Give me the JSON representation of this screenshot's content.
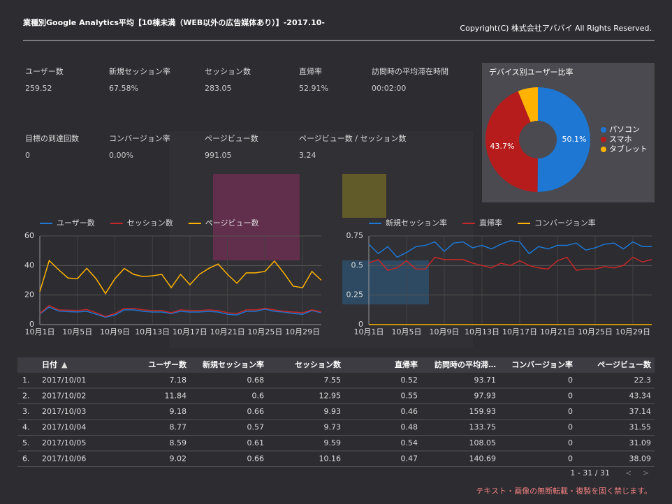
{
  "header": {
    "title": "業種別Google Analytics平均【10棟未満（WEB以外の広告媒体あり）】-2017.10-",
    "copyright": "Copyright(C) 株式会社アババイ All Rights Reserved."
  },
  "scorecards": [
    {
      "label": "ユーザー数",
      "value": "259.52"
    },
    {
      "label": "新規セッション率",
      "value": "67.58%"
    },
    {
      "label": "セッション数",
      "value": "283.05"
    },
    {
      "label": "直帰率",
      "value": "52.91%"
    },
    {
      "label": "訪問時の平均滞在時間",
      "value": "00:02:00"
    },
    {
      "label": "目標の到達回数",
      "value": "0"
    },
    {
      "label": "コンバージョン率",
      "value": "0.00%"
    },
    {
      "label": "ページビュー数",
      "value": "991.05"
    },
    {
      "label": "ページビュー数 / セッション数",
      "value": "3.24"
    }
  ],
  "chart_data": [
    {
      "type": "line",
      "categories": [
        "10月1日",
        null,
        null,
        null,
        "10月5日",
        null,
        null,
        null,
        "10月9日",
        null,
        null,
        null,
        "10月13日",
        null,
        null,
        null,
        "10月17日",
        null,
        null,
        null,
        "10月21日",
        null,
        null,
        null,
        "10月25日",
        null,
        null,
        null,
        "10月29日",
        null,
        null
      ],
      "series": [
        {
          "name": "ユーザー数",
          "color": "#1e77d3",
          "values": [
            7.18,
            11.84,
            9.18,
            8.77,
            8.59,
            9.02,
            7,
            5,
            6.5,
            10,
            10,
            9,
            8.5,
            8.5,
            7.5,
            9,
            8.5,
            8.5,
            9,
            8.5,
            7,
            6.5,
            9,
            9,
            10.5,
            9,
            8.5,
            7.5,
            7,
            9.5,
            8
          ]
        },
        {
          "name": "セッション数",
          "color": "#c62828",
          "values": [
            7.55,
            12.95,
            9.93,
            9.73,
            9.59,
            10.16,
            8,
            5.5,
            7.5,
            11,
            11,
            10,
            9.5,
            9.5,
            8,
            10,
            9.5,
            9.5,
            10,
            9.5,
            8,
            7.5,
            10,
            10,
            11,
            10,
            9,
            8.5,
            8,
            10,
            8.5
          ]
        },
        {
          "name": "ページビュー数",
          "color": "#ffb300",
          "values": [
            22.3,
            43.34,
            37.14,
            31.55,
            31.09,
            38.09,
            31,
            21,
            31,
            38,
            34,
            32.5,
            33,
            34,
            25,
            34,
            27,
            34,
            38,
            41,
            34,
            28,
            35,
            35,
            36,
            43,
            35,
            26,
            25,
            36,
            30
          ]
        }
      ],
      "ylim": [
        0,
        60
      ],
      "yticks": [
        0,
        20,
        40,
        60
      ],
      "grid": true
    },
    {
      "type": "line",
      "categories": [
        "10月1日",
        null,
        null,
        null,
        "10月5日",
        null,
        null,
        null,
        "10月9日",
        null,
        null,
        null,
        "10月13日",
        null,
        null,
        null,
        "10月17日",
        null,
        null,
        null,
        "10月21日",
        null,
        null,
        null,
        "10月25日",
        null,
        null,
        null,
        "10月29日",
        null,
        null
      ],
      "series": [
        {
          "name": "新規セッション率",
          "color": "#1e77d3",
          "values": [
            0.68,
            0.6,
            0.66,
            0.57,
            0.61,
            0.66,
            0.67,
            0.7,
            0.62,
            0.69,
            0.7,
            0.65,
            0.67,
            0.64,
            0.68,
            0.71,
            0.7,
            0.6,
            0.66,
            0.64,
            0.67,
            0.67,
            0.69,
            0.63,
            0.65,
            0.68,
            0.69,
            0.64,
            0.7,
            0.66,
            0.66
          ]
        },
        {
          "name": "直帰率",
          "color": "#c62828",
          "values": [
            0.52,
            0.55,
            0.46,
            0.48,
            0.54,
            0.47,
            0.47,
            0.57,
            0.55,
            0.55,
            0.55,
            0.52,
            0.5,
            0.48,
            0.52,
            0.5,
            0.54,
            0.5,
            0.48,
            0.47,
            0.54,
            0.57,
            0.46,
            0.47,
            0.47,
            0.49,
            0.48,
            0.5,
            0.57,
            0.53,
            0.55
          ]
        },
        {
          "name": "コンバージョン率",
          "color": "#ffb300",
          "values": [
            0,
            0,
            0,
            0,
            0,
            0,
            0,
            0,
            0,
            0,
            0,
            0,
            0,
            0,
            0,
            0,
            0,
            0,
            0,
            0,
            0,
            0,
            0,
            0,
            0,
            0,
            0,
            0,
            0,
            0,
            0
          ]
        }
      ],
      "ylim": [
        0,
        0.75
      ],
      "yticks": [
        0,
        0.25,
        0.5,
        0.75
      ],
      "grid": true
    },
    {
      "type": "pie",
      "title": "デバイス別ユーザー比率",
      "categories": [
        "パソコン",
        "スマホ",
        "タブレット"
      ],
      "values": [
        50.1,
        43.7,
        6.2
      ],
      "value_labels": [
        "50.1%",
        "43.7%",
        null
      ],
      "colors": [
        "#1e77d3",
        "#b71c1c",
        "#ffb300"
      ]
    }
  ],
  "table": {
    "columns": [
      "日付",
      "ユーザー数",
      "新規セッション率",
      "セッション数",
      "直帰率",
      "訪問時の平均滞…",
      "コンバージョン率",
      "ページビュー数"
    ],
    "rows": [
      [
        "1.",
        "2017/10/01",
        7.18,
        0.68,
        7.55,
        0.52,
        93.71,
        0,
        22.3
      ],
      [
        "2.",
        "2017/10/02",
        11.84,
        0.6,
        12.95,
        0.55,
        97.93,
        0,
        43.34
      ],
      [
        "3.",
        "2017/10/03",
        9.18,
        0.66,
        9.93,
        0.46,
        159.93,
        0,
        37.14
      ],
      [
        "4.",
        "2017/10/04",
        8.77,
        0.57,
        9.73,
        0.48,
        133.75,
        0,
        31.55
      ],
      [
        "5.",
        "2017/10/05",
        8.59,
        0.61,
        9.59,
        0.54,
        108.05,
        0,
        31.09
      ],
      [
        "6.",
        "2017/10/06",
        9.02,
        0.66,
        10.16,
        0.47,
        140.69,
        0,
        38.09
      ]
    ],
    "pagination": "1 - 31 / 31"
  },
  "footer": "テキスト・画像の無断転載・複製を固く禁じます。"
}
